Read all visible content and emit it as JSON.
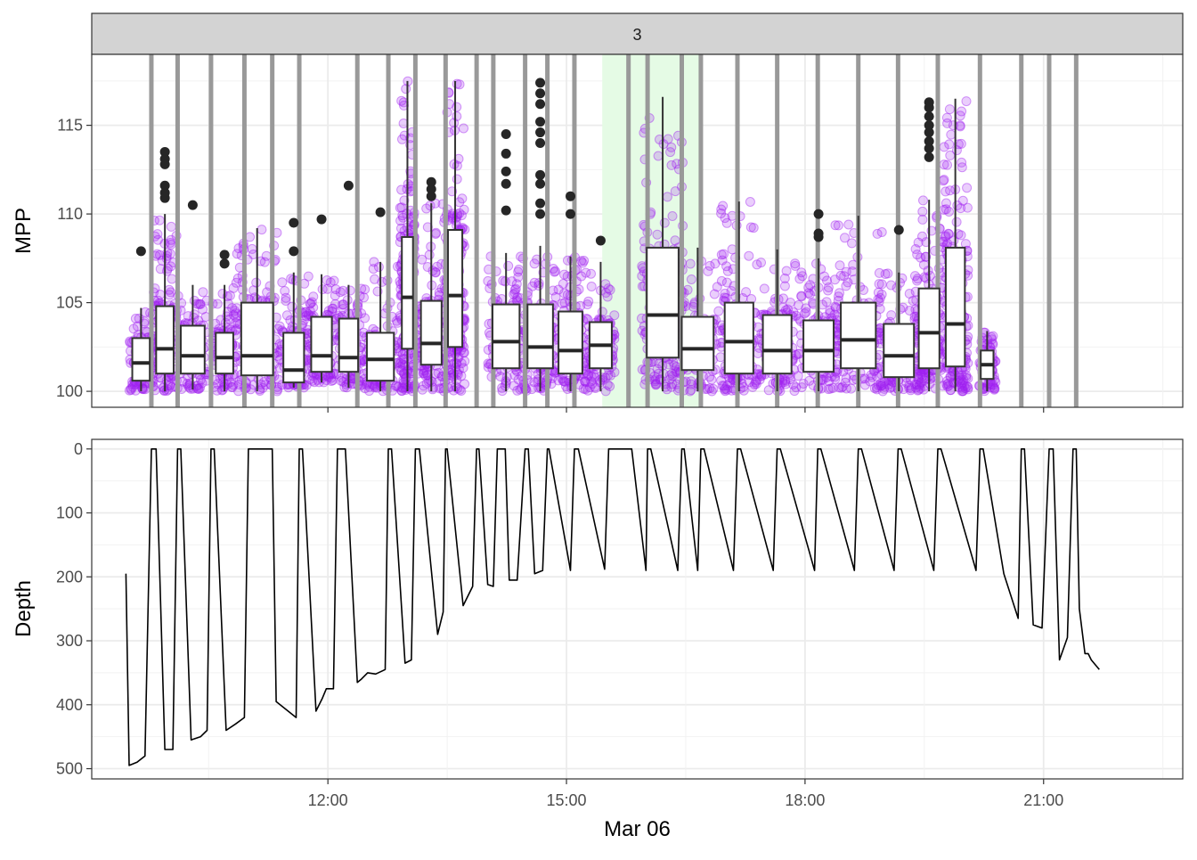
{
  "facet_label": "3",
  "chart_data": [
    {
      "type": "box",
      "panel": "top",
      "ylabel": "MPP",
      "ylim": [
        99.1,
        119.0
      ],
      "yticks": [
        100,
        105,
        110,
        115
      ],
      "ytick_labels": [
        "100",
        "105",
        "110",
        "115"
      ],
      "x_unit": "hours since 00:00 on Mar 06",
      "xlim": [
        9.03,
        22.75
      ],
      "highlight_region": {
        "x_start": 15.45,
        "x_end": 16.7,
        "color": "#e5fbe5"
      },
      "divider_lines_x": [
        9.78,
        10.11,
        10.53,
        10.95,
        11.3,
        11.64,
        12.37,
        12.76,
        13.1,
        13.48,
        13.87,
        14.08,
        14.48,
        14.76,
        15.1,
        15.78,
        16.02,
        16.45,
        16.69,
        17.15,
        17.65,
        18.16,
        18.67,
        19.17,
        19.67,
        20.2,
        20.72,
        21.07,
        21.41
      ],
      "point_color": "#a020f0",
      "outlier_color": "#262626",
      "boxes": [
        {
          "x": 9.65,
          "width": 0.22,
          "q1": 100.6,
          "median": 101.6,
          "q3": 103.0,
          "low": 100.0,
          "high": 104.7,
          "outliers": [
            107.9
          ]
        },
        {
          "x": 9.95,
          "width": 0.22,
          "q1": 101.0,
          "median": 102.4,
          "q3": 104.8,
          "low": 100.0,
          "high": 110.0,
          "outliers": [
            110.9,
            111.2,
            111.6,
            112.8,
            113.1,
            113.5
          ]
        },
        {
          "x": 10.3,
          "width": 0.3,
          "q1": 101.0,
          "median": 102.0,
          "q3": 103.7,
          "low": 100.1,
          "high": 106.0,
          "outliers": [
            110.5
          ]
        },
        {
          "x": 10.7,
          "width": 0.22,
          "q1": 101.0,
          "median": 101.9,
          "q3": 103.3,
          "low": 100.0,
          "high": 106.0,
          "outliers": [
            107.2,
            107.7
          ]
        },
        {
          "x": 11.11,
          "width": 0.4,
          "q1": 100.9,
          "median": 102.0,
          "q3": 105.0,
          "low": 100.0,
          "high": 109.2,
          "outliers": []
        },
        {
          "x": 11.57,
          "width": 0.26,
          "q1": 100.5,
          "median": 101.2,
          "q3": 103.3,
          "low": 100.2,
          "high": 106.7,
          "outliers": [
            107.9,
            109.5
          ]
        },
        {
          "x": 11.92,
          "width": 0.26,
          "q1": 101.1,
          "median": 102.0,
          "q3": 104.2,
          "low": 100.5,
          "high": 106.6,
          "outliers": [
            109.7
          ]
        },
        {
          "x": 12.26,
          "width": 0.24,
          "q1": 101.1,
          "median": 101.9,
          "q3": 104.1,
          "low": 100.2,
          "high": 106.0,
          "outliers": [
            111.6
          ]
        },
        {
          "x": 12.66,
          "width": 0.34,
          "q1": 100.6,
          "median": 101.8,
          "q3": 103.3,
          "low": 100.0,
          "high": 107.3,
          "outliers": [
            110.1
          ]
        },
        {
          "x": 13.0,
          "width": 0.14,
          "q1": 102.4,
          "median": 105.3,
          "q3": 108.7,
          "low": 100.0,
          "high": 117.5,
          "outliers": []
        },
        {
          "x": 13.3,
          "width": 0.26,
          "q1": 101.5,
          "median": 102.7,
          "q3": 105.1,
          "low": 100.0,
          "high": 110.6,
          "outliers": [
            111.0,
            111.4,
            111.8
          ]
        },
        {
          "x": 13.6,
          "width": 0.18,
          "q1": 102.5,
          "median": 105.4,
          "q3": 109.1,
          "low": 100.0,
          "high": 117.5,
          "outliers": []
        },
        {
          "x": 14.24,
          "width": 0.34,
          "q1": 101.3,
          "median": 102.8,
          "q3": 104.9,
          "low": 100.0,
          "high": 107.8,
          "outliers": [
            110.2,
            111.7,
            112.4,
            113.4,
            114.5
          ]
        },
        {
          "x": 14.67,
          "width": 0.32,
          "q1": 101.3,
          "median": 102.5,
          "q3": 104.9,
          "low": 100.0,
          "high": 108.2,
          "outliers": [
            110.0,
            110.6,
            111.7,
            112.2,
            114.0,
            114.6,
            115.2,
            116.2,
            116.8,
            117.4
          ]
        },
        {
          "x": 15.05,
          "width": 0.3,
          "q1": 101.0,
          "median": 102.3,
          "q3": 104.5,
          "low": 100.0,
          "high": 107.6,
          "outliers": [
            110.0,
            111.0
          ]
        },
        {
          "x": 15.43,
          "width": 0.28,
          "q1": 101.3,
          "median": 102.6,
          "q3": 103.9,
          "low": 100.0,
          "high": 107.3,
          "outliers": [
            108.5
          ]
        },
        {
          "x": 16.21,
          "width": 0.4,
          "q1": 101.9,
          "median": 104.3,
          "q3": 108.1,
          "low": 100.0,
          "high": 116.6,
          "outliers": []
        },
        {
          "x": 16.65,
          "width": 0.4,
          "q1": 101.2,
          "median": 102.4,
          "q3": 104.2,
          "low": 100.0,
          "high": 108.1,
          "outliers": []
        },
        {
          "x": 17.17,
          "width": 0.36,
          "q1": 101.0,
          "median": 102.8,
          "q3": 105.0,
          "low": 100.0,
          "high": 110.7,
          "outliers": []
        },
        {
          "x": 17.65,
          "width": 0.36,
          "q1": 101.0,
          "median": 102.3,
          "q3": 104.3,
          "low": 100.0,
          "high": 108.0,
          "outliers": []
        },
        {
          "x": 18.17,
          "width": 0.38,
          "q1": 101.1,
          "median": 102.3,
          "q3": 104.0,
          "low": 100.0,
          "high": 107.5,
          "outliers": [
            108.7,
            108.9,
            110.0
          ]
        },
        {
          "x": 18.67,
          "width": 0.44,
          "q1": 101.3,
          "median": 102.9,
          "q3": 105.0,
          "low": 100.0,
          "high": 109.9,
          "outliers": []
        },
        {
          "x": 19.18,
          "width": 0.38,
          "q1": 100.8,
          "median": 102.0,
          "q3": 103.8,
          "low": 100.0,
          "high": 106.7,
          "outliers": [
            109.1
          ]
        },
        {
          "x": 19.56,
          "width": 0.26,
          "q1": 101.3,
          "median": 103.3,
          "q3": 105.8,
          "low": 100.0,
          "high": 110.8,
          "outliers": [
            113.2,
            113.7,
            114.1,
            114.6,
            115.0,
            115.5,
            116.0,
            116.3
          ]
        },
        {
          "x": 19.89,
          "width": 0.24,
          "q1": 101.4,
          "median": 103.8,
          "q3": 108.1,
          "low": 100.0,
          "high": 116.5,
          "outliers": []
        },
        {
          "x": 20.29,
          "width": 0.16,
          "q1": 100.7,
          "median": 101.5,
          "q3": 102.3,
          "low": 100.0,
          "high": 103.4,
          "outliers": []
        }
      ]
    },
    {
      "type": "line",
      "panel": "bottom",
      "xlabel": "Mar 06",
      "ylabel": "Depth",
      "ylim": [
        516,
        -15
      ],
      "y_reversed": true,
      "yticks": [
        0,
        100,
        200,
        300,
        400,
        500
      ],
      "ytick_labels": [
        "0",
        "100",
        "200",
        "300",
        "400",
        "500"
      ],
      "xticks": [
        12,
        15,
        18,
        21
      ],
      "xtick_labels": [
        "12:00",
        "15:00",
        "18:00",
        "21:00"
      ],
      "x_unit": "hours since 00:00 on Mar 06",
      "xlim": [
        9.03,
        22.75
      ],
      "series": [
        {
          "color": "#000000",
          "x": [
            9.46,
            9.5,
            9.6,
            9.7,
            9.78,
            9.84,
            9.95,
            10.05,
            10.11,
            10.15,
            10.28,
            10.4,
            10.48,
            10.53,
            10.57,
            10.72,
            10.84,
            10.95,
            11.0,
            11.3,
            11.35,
            11.6,
            11.64,
            11.68,
            11.85,
            11.93,
            11.98,
            12.07,
            12.12,
            12.22,
            12.37,
            12.42,
            12.5,
            12.6,
            12.72,
            12.76,
            12.8,
            12.97,
            13.05,
            13.1,
            13.15,
            13.38,
            13.45,
            13.48,
            13.5,
            13.7,
            13.82,
            13.87,
            13.9,
            14.01,
            14.08,
            14.13,
            14.23,
            14.28,
            14.38,
            14.48,
            14.52,
            14.6,
            14.7,
            14.76,
            14.78,
            15.05,
            15.1,
            15.15,
            15.48,
            15.53,
            15.78,
            15.82,
            16.0,
            16.02,
            16.06,
            16.4,
            16.45,
            16.48,
            16.65,
            16.69,
            16.73,
            17.1,
            17.15,
            17.19,
            17.6,
            17.65,
            17.69,
            18.12,
            18.16,
            18.2,
            18.62,
            18.67,
            18.71,
            19.12,
            19.17,
            19.21,
            19.62,
            19.67,
            19.71,
            20.15,
            20.2,
            20.24,
            20.5,
            20.68,
            20.72,
            20.76,
            20.87,
            20.98,
            21.07,
            21.12,
            21.2,
            21.3,
            21.37,
            21.41,
            21.45,
            21.52,
            21.56,
            21.6,
            21.7
          ],
          "y": [
            195,
            495,
            490,
            480,
            0,
            0,
            470,
            470,
            0,
            0,
            455,
            450,
            440,
            0,
            0,
            440,
            430,
            420,
            0,
            0,
            395,
            420,
            0,
            0,
            410,
            390,
            375,
            375,
            0,
            0,
            365,
            360,
            350,
            352,
            345,
            0,
            0,
            335,
            330,
            0,
            0,
            290,
            255,
            0,
            0,
            245,
            215,
            0,
            0,
            212,
            215,
            0,
            0,
            205,
            205,
            0,
            0,
            195,
            190,
            0,
            0,
            190,
            0,
            0,
            188,
            0,
            0,
            0,
            190,
            0,
            0,
            190,
            0,
            0,
            190,
            0,
            0,
            190,
            0,
            0,
            190,
            0,
            0,
            190,
            0,
            0,
            190,
            0,
            0,
            190,
            0,
            0,
            190,
            0,
            0,
            190,
            0,
            0,
            195,
            265,
            0,
            0,
            275,
            280,
            0,
            0,
            330,
            295,
            0,
            0,
            250,
            320,
            320,
            330,
            345
          ]
        }
      ]
    }
  ]
}
